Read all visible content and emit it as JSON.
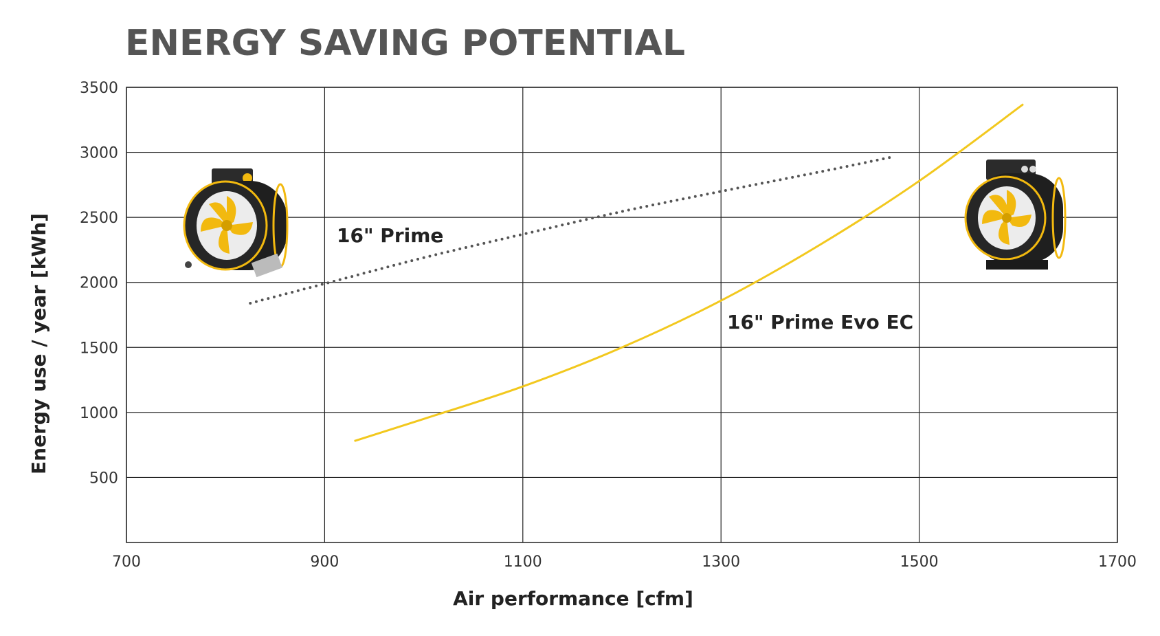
{
  "chart_data": {
    "type": "line",
    "title": "ENERGY SAVING POTENTIAL",
    "xlabel": "Air performance [cfm]",
    "ylabel": "Energy use / year [kWh]",
    "xlim": [
      700,
      1700
    ],
    "ylim": [
      0,
      3500
    ],
    "x_ticks": [
      "700",
      "900",
      "1100",
      "1300",
      "1500",
      "1700"
    ],
    "y_ticks": [
      "500",
      "1000",
      "1500",
      "2000",
      "2500",
      "3000",
      "3500"
    ],
    "grid": true,
    "legend": "none",
    "series": [
      {
        "name": "16\" Prime",
        "style": "dotted",
        "color": "#555555",
        "x": [
          825,
          900,
          1000,
          1100,
          1200,
          1300,
          1400,
          1470
        ],
        "y": [
          1840,
          1990,
          2190,
          2370,
          2545,
          2700,
          2850,
          2960
        ]
      },
      {
        "name": "16\" Prime Evo EC",
        "style": "solid",
        "color": "#F2C81E",
        "x": [
          930,
          1000,
          1100,
          1200,
          1300,
          1400,
          1500,
          1605
        ],
        "y": [
          780,
          950,
          1200,
          1500,
          1860,
          2290,
          2780,
          3370
        ]
      }
    ]
  },
  "icons": {
    "left_product": "inline-fan-icon",
    "right_product": "inline-fan-ec-icon",
    "accent_color": "#F2B90F"
  }
}
